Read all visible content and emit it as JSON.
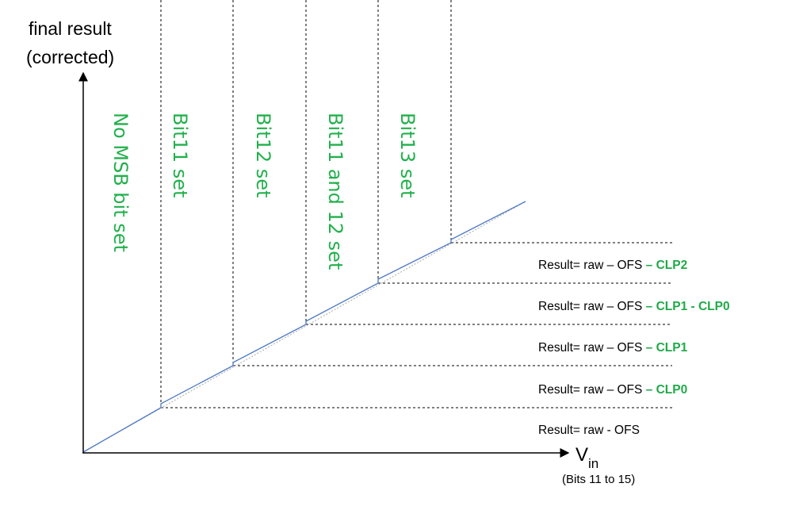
{
  "axes": {
    "y_label_line1": "final result",
    "y_label_line2": "(corrected)",
    "x_label": "V",
    "x_label_subscript": "in",
    "x_note": "(Bits 11 to 15)"
  },
  "regions": [
    "No MSB bit set",
    "Bit11 set",
    "Bit12 set",
    "Bit11 and 12 set",
    "Bit13 set"
  ],
  "results": [
    {
      "base": "Result= raw – OFS ",
      "extra": "– CLP2"
    },
    {
      "base": "Result= raw – OFS ",
      "extra": "– CLP1 - CLP0"
    },
    {
      "base": "Result= raw – OFS ",
      "extra": "– CLP1"
    },
    {
      "base": "Result= raw – OFS ",
      "extra": "– CLP0"
    },
    {
      "base": "Result= raw - OFS",
      "extra": ""
    }
  ],
  "colors": {
    "region_text": "#22b04c",
    "result_accent": "#1faa48",
    "transfer_line": "#4a78c2"
  }
}
